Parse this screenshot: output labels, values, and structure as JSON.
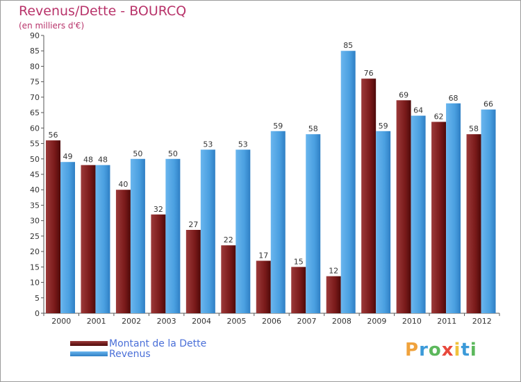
{
  "header": {
    "title": "Revenus/Dette - BOURCQ",
    "subtitle": "(en milliers d'€)"
  },
  "legend": {
    "items": [
      {
        "label": "Montant de la Dette",
        "color": "#7a1a1a"
      },
      {
        "label": "Revenus",
        "color": "#4a9fe0"
      }
    ]
  },
  "logo": {
    "text": "Proxiti",
    "letters": [
      "P",
      "r",
      "o",
      "x",
      "i",
      "t",
      "i"
    ],
    "colors": [
      "#f0a23c",
      "#3b9ad9",
      "#5cb85c",
      "#e8483c",
      "#f0c23c",
      "#3b9ad9",
      "#5cb85c"
    ]
  },
  "colors": {
    "dette": "#7a1a1a",
    "revenus": "#4a9fe0",
    "axis": "#555555",
    "title": "#b8336a"
  },
  "chart_data": {
    "type": "bar",
    "title": "Revenus/Dette - BOURCQ",
    "subtitle": "(en milliers d'€)",
    "categories": [
      "2000",
      "2001",
      "2002",
      "2003",
      "2004",
      "2005",
      "2006",
      "2007",
      "2008",
      "2009",
      "2010",
      "2011",
      "2012"
    ],
    "series": [
      {
        "name": "Montant de la Dette",
        "values": [
          56,
          48,
          40,
          32,
          27,
          22,
          17,
          15,
          12,
          76,
          69,
          62,
          58
        ]
      },
      {
        "name": "Revenus",
        "values": [
          49,
          48,
          50,
          50,
          53,
          53,
          59,
          58,
          85,
          59,
          64,
          68,
          66
        ]
      }
    ],
    "ylim": [
      0,
      90
    ],
    "yticks": [
      0,
      5,
      10,
      15,
      20,
      25,
      30,
      35,
      40,
      45,
      50,
      55,
      60,
      65,
      70,
      75,
      80,
      85,
      90
    ],
    "legend_position": "bottom-left",
    "grid": false
  }
}
